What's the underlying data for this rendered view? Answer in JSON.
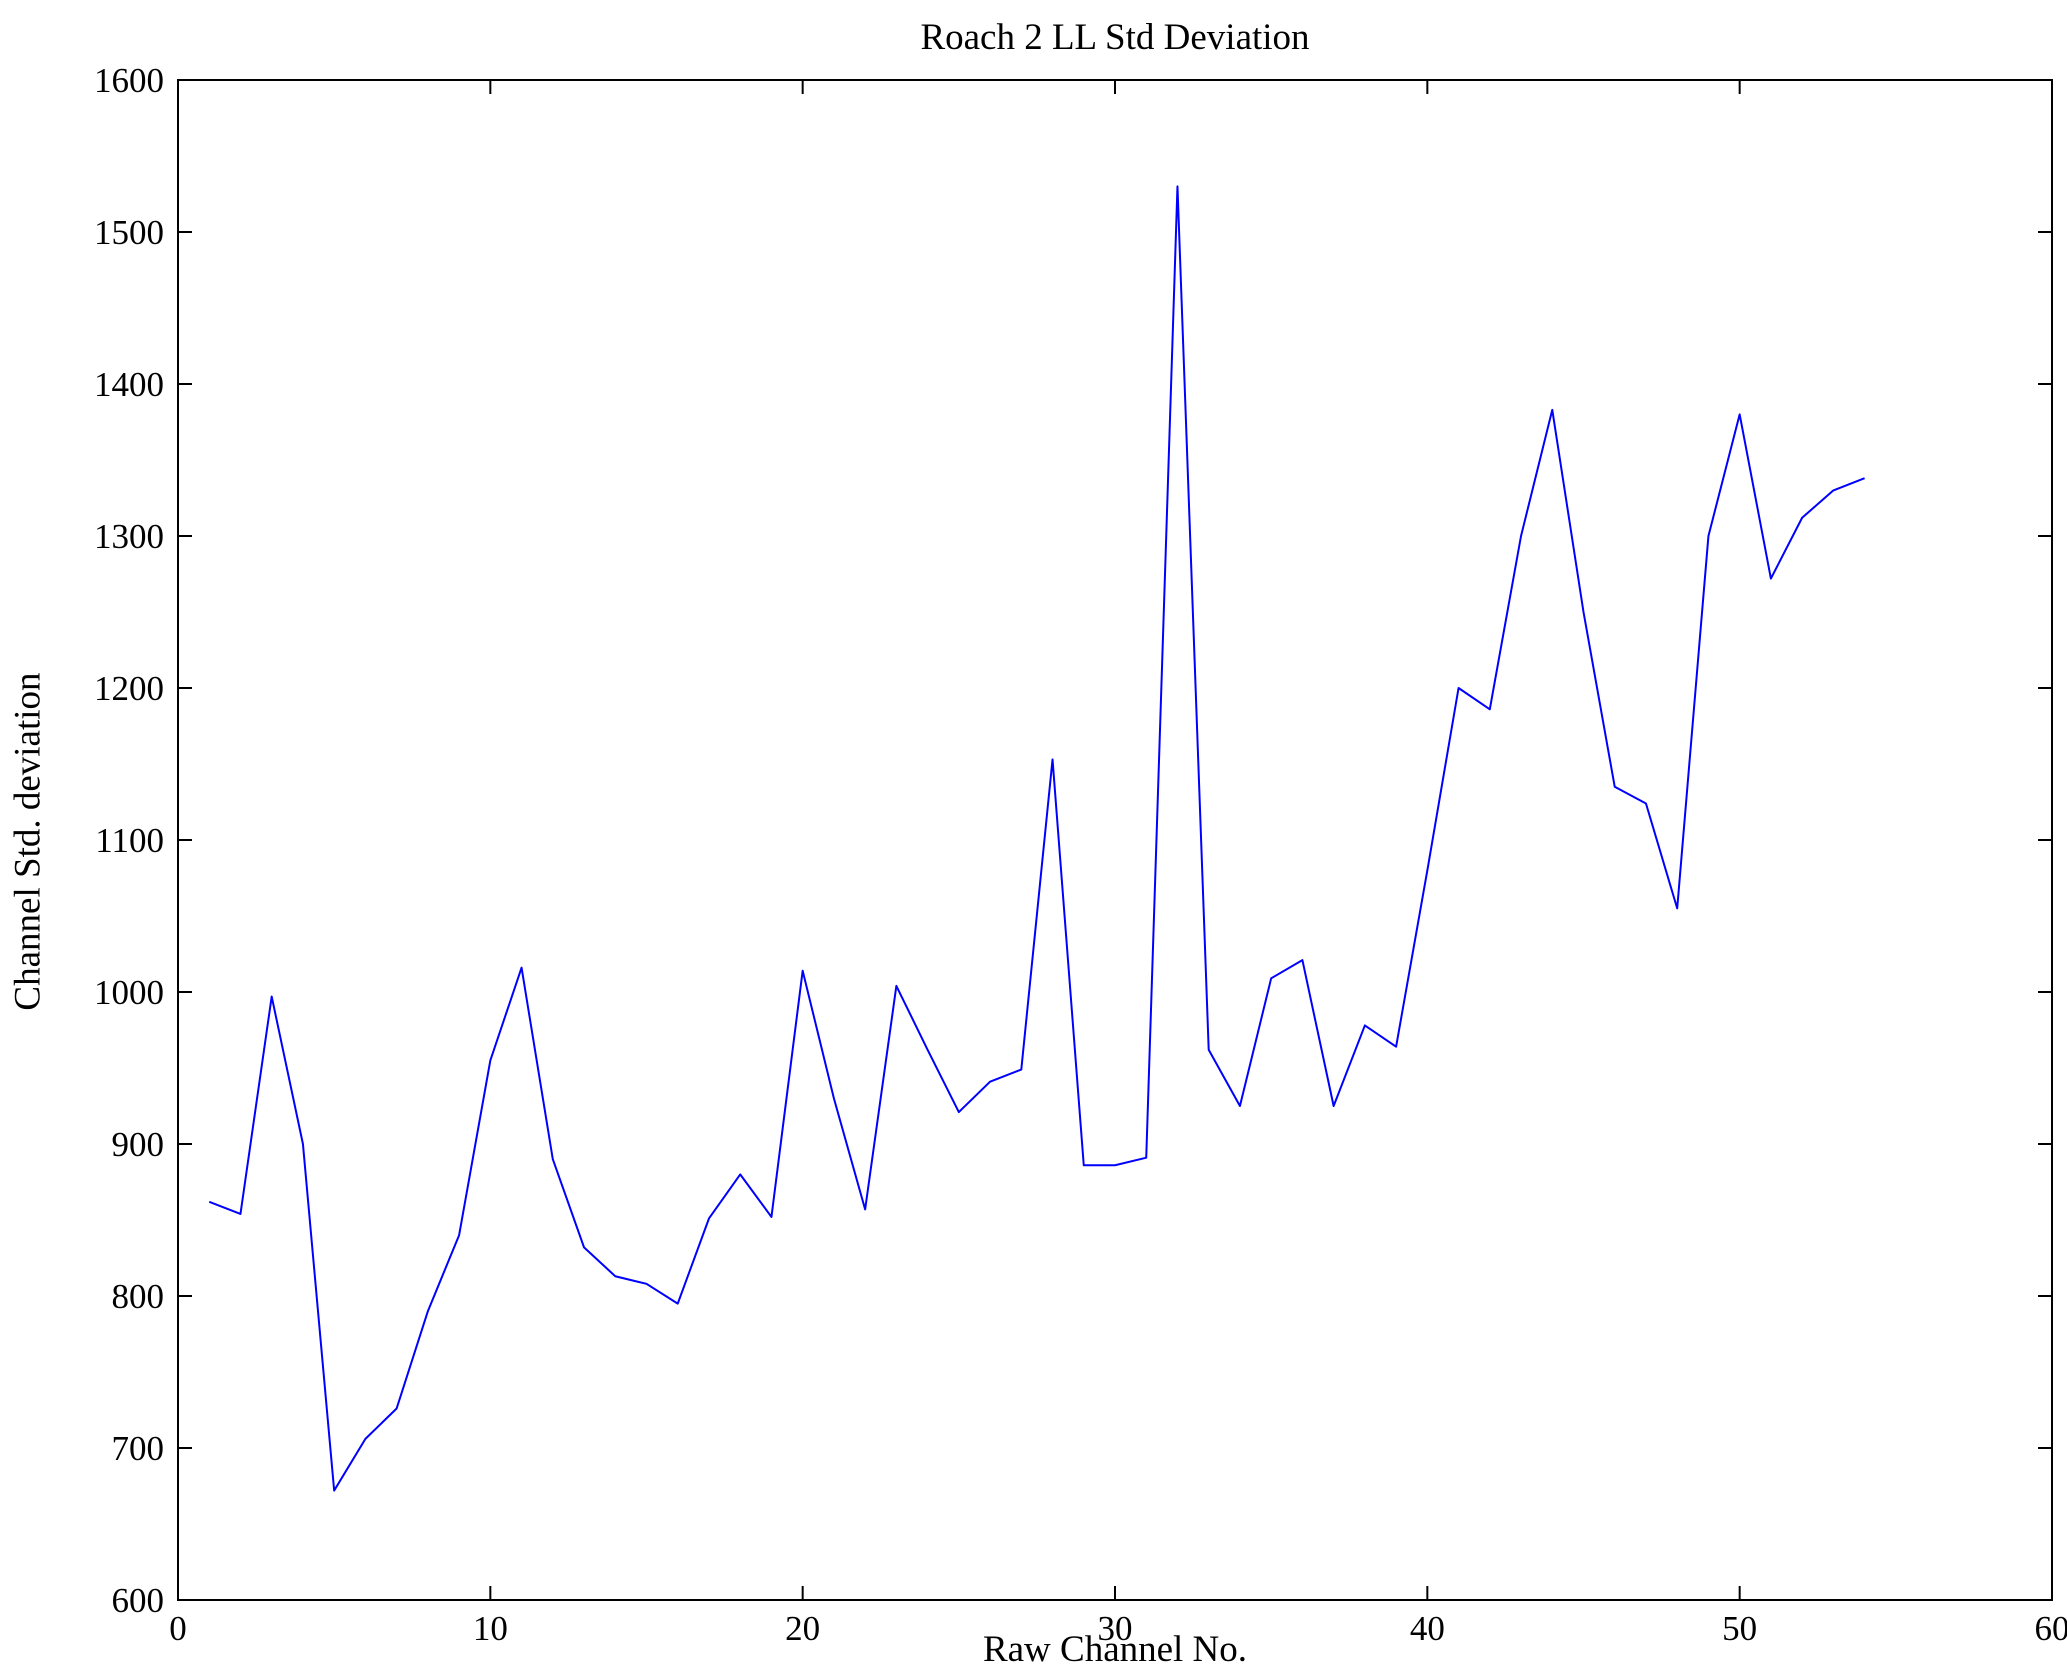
{
  "chart_data": {
    "type": "line",
    "title": "Roach 2 LL Std Deviation",
    "xlabel": "Raw Channel No.",
    "ylabel": "Channel Std. deviation",
    "xlim": [
      0,
      60
    ],
    "ylim": [
      600,
      1600
    ],
    "xticks": [
      0,
      10,
      20,
      30,
      40,
      50,
      60
    ],
    "yticks": [
      600,
      700,
      800,
      900,
      1000,
      1100,
      1200,
      1300,
      1400,
      1500,
      1600
    ],
    "grid": false,
    "legend": null,
    "line_color": "#0000ff",
    "axis_color": "#000000",
    "background_color": "#ffffff",
    "series": [
      {
        "name": "Channel Std. deviation",
        "x": [
          1,
          2,
          3,
          4,
          5,
          6,
          7,
          8,
          9,
          10,
          11,
          12,
          13,
          14,
          15,
          16,
          17,
          18,
          19,
          20,
          21,
          22,
          23,
          24,
          25,
          26,
          27,
          28,
          29,
          30,
          31,
          32,
          33,
          34,
          35,
          36,
          37,
          38,
          39,
          40,
          41,
          42,
          43,
          44,
          45,
          46,
          47,
          48,
          49,
          50,
          51,
          52,
          53,
          54
        ],
        "y": [
          862,
          854,
          997,
          900,
          672,
          706,
          726,
          790,
          840,
          955,
          1016,
          890,
          832,
          813,
          808,
          795,
          851,
          880,
          852,
          1014,
          930,
          857,
          1004,
          962,
          921,
          941,
          949,
          1153,
          886,
          886,
          891,
          1530,
          962,
          925,
          1009,
          1021,
          925,
          978,
          964,
          1080,
          1200,
          1186,
          1300,
          1383,
          1250,
          1135,
          1124,
          1055,
          1300,
          1380,
          1272,
          1312,
          1330,
          1338
        ]
      }
    ]
  }
}
